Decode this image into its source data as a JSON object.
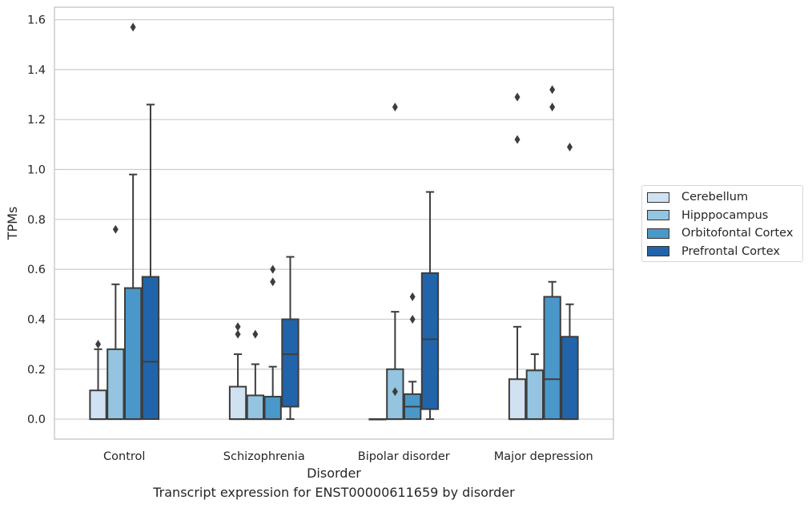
{
  "chart_data": {
    "type": "box",
    "title": "",
    "caption": "Transcript expression for ENST00000611659 by disorder",
    "xlabel": "Disorder",
    "ylabel": "TPMs",
    "ylim": [
      -0.08,
      1.65
    ],
    "yticks": [
      "0.0",
      "0.2",
      "0.4",
      "0.6",
      "0.8",
      "1.0",
      "1.2",
      "1.4",
      "1.6"
    ],
    "grid": "horizontal",
    "legend_position": "right",
    "categories": [
      "Control",
      "Schizophrenia",
      "Bipolar disorder",
      "Major depression"
    ],
    "series": [
      {
        "name": "Cerebellum",
        "color": "#d0e1f2",
        "boxes": [
          {
            "q1": 0,
            "median": 0,
            "q3": 0.115,
            "whisker_low": 0,
            "whisker_high": 0.28,
            "outliers": [
              0.3
            ]
          },
          {
            "q1": 0,
            "median": 0,
            "q3": 0.13,
            "whisker_low": 0,
            "whisker_high": 0.26,
            "outliers": [
              0.34,
              0.37
            ]
          },
          {
            "q1": 0,
            "median": 0,
            "q3": 0,
            "whisker_low": 0,
            "whisker_high": 0,
            "outliers": []
          },
          {
            "q1": 0,
            "median": 0,
            "q3": 0.16,
            "whisker_low": 0,
            "whisker_high": 0.37,
            "outliers": [
              1.12,
              1.29
            ]
          }
        ]
      },
      {
        "name": "Hipppocampus",
        "color": "#94c4df",
        "boxes": [
          {
            "q1": 0,
            "median": 0,
            "q3": 0.28,
            "whisker_low": 0,
            "whisker_high": 0.54,
            "outliers": [
              0.76
            ]
          },
          {
            "q1": 0,
            "median": 0,
            "q3": 0.095,
            "whisker_low": 0,
            "whisker_high": 0.22,
            "outliers": [
              0.34
            ]
          },
          {
            "q1": 0,
            "median": 0,
            "q3": 0.2,
            "whisker_low": 0,
            "whisker_high": 0.43,
            "outliers": [
              0.11,
              1.25
            ]
          },
          {
            "q1": 0,
            "median": 0,
            "q3": 0.195,
            "whisker_low": 0,
            "whisker_high": 0.26,
            "outliers": []
          }
        ]
      },
      {
        "name": "Orbitofontal Cortex",
        "color": "#4a98c9",
        "boxes": [
          {
            "q1": 0,
            "median": 0,
            "q3": 0.525,
            "whisker_low": 0,
            "whisker_high": 0.98,
            "outliers": [
              1.57
            ]
          },
          {
            "q1": 0,
            "median": 0,
            "q3": 0.09,
            "whisker_low": 0,
            "whisker_high": 0.21,
            "outliers": [
              0.55,
              0.6
            ]
          },
          {
            "q1": 0,
            "median": 0.05,
            "q3": 0.1,
            "whisker_low": 0,
            "whisker_high": 0.15,
            "outliers": [
              0.4,
              0.49
            ]
          },
          {
            "q1": 0,
            "median": 0.16,
            "q3": 0.49,
            "whisker_low": 0,
            "whisker_high": 0.55,
            "outliers": [
              1.25,
              1.32
            ]
          }
        ]
      },
      {
        "name": "Prefrontal Cortex",
        "color": "#2264aa",
        "boxes": [
          {
            "q1": 0,
            "median": 0.23,
            "q3": 0.57,
            "whisker_low": 0,
            "whisker_high": 1.26,
            "outliers": []
          },
          {
            "q1": 0.05,
            "median": 0.26,
            "q3": 0.4,
            "whisker_low": 0,
            "whisker_high": 0.65,
            "outliers": []
          },
          {
            "q1": 0.04,
            "median": 0.32,
            "q3": 0.585,
            "whisker_low": 0,
            "whisker_high": 0.91,
            "outliers": []
          },
          {
            "q1": 0,
            "median": 0,
            "q3": 0.33,
            "whisker_low": 0,
            "whisker_high": 0.46,
            "outliers": [
              1.09
            ]
          }
        ]
      }
    ]
  }
}
